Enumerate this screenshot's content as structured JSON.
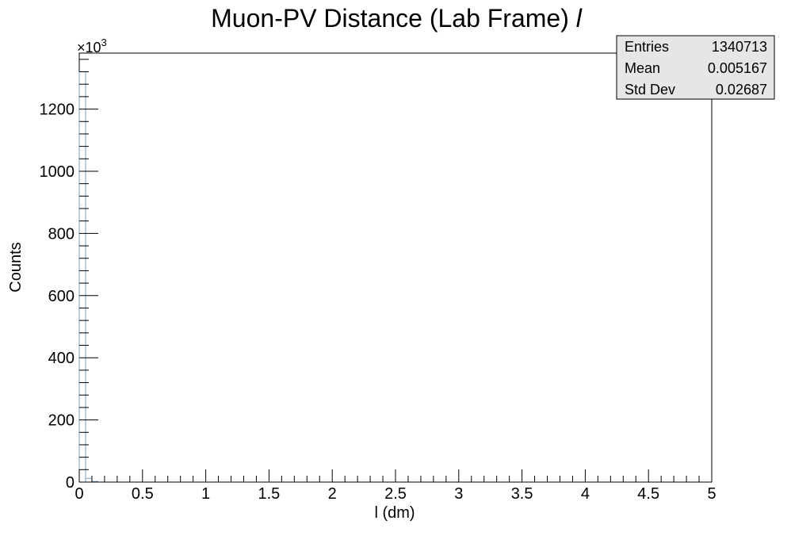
{
  "chart_data": {
    "type": "histogram",
    "title": "Muon-PV Distance (Lab Frame) ",
    "title_symbol": "l",
    "xlabel": "l (dm)",
    "ylabel": "Counts",
    "y_exponent_base": "×10",
    "y_exponent_power": "3",
    "xlim": [
      0,
      5
    ],
    "ylim": [
      0,
      1380
    ],
    "y_scale_factor": 1000,
    "x_ticks": [
      {
        "value": 0,
        "label": "0"
      },
      {
        "value": 0.5,
        "label": "0.5"
      },
      {
        "value": 1,
        "label": "1"
      },
      {
        "value": 1.5,
        "label": "1.5"
      },
      {
        "value": 2,
        "label": "2"
      },
      {
        "value": 2.5,
        "label": "2.5"
      },
      {
        "value": 3,
        "label": "3"
      },
      {
        "value": 3.5,
        "label": "3.5"
      },
      {
        "value": 4,
        "label": "4"
      },
      {
        "value": 4.5,
        "label": "4.5"
      },
      {
        "value": 5,
        "label": "5"
      }
    ],
    "y_ticks": [
      {
        "value": 0,
        "label": "0"
      },
      {
        "value": 200,
        "label": "200"
      },
      {
        "value": 400,
        "label": "400"
      },
      {
        "value": 600,
        "label": "600"
      },
      {
        "value": 800,
        "label": "800"
      },
      {
        "value": 1000,
        "label": "1000"
      },
      {
        "value": 1200,
        "label": "1200"
      }
    ],
    "bins": [
      {
        "x0": 0.0,
        "x1": 0.05,
        "count": 1320
      },
      {
        "x0": 0.05,
        "x1": 0.1,
        "count": 12
      },
      {
        "x0": 0.1,
        "x1": 0.15,
        "count": 2
      }
    ],
    "line_color": "#7f9fbf",
    "stats": [
      {
        "label": "Entries",
        "value": "1340713"
      },
      {
        "label": "Mean",
        "value": "0.005167"
      },
      {
        "label": "Std Dev",
        "value": "0.02687"
      }
    ]
  }
}
